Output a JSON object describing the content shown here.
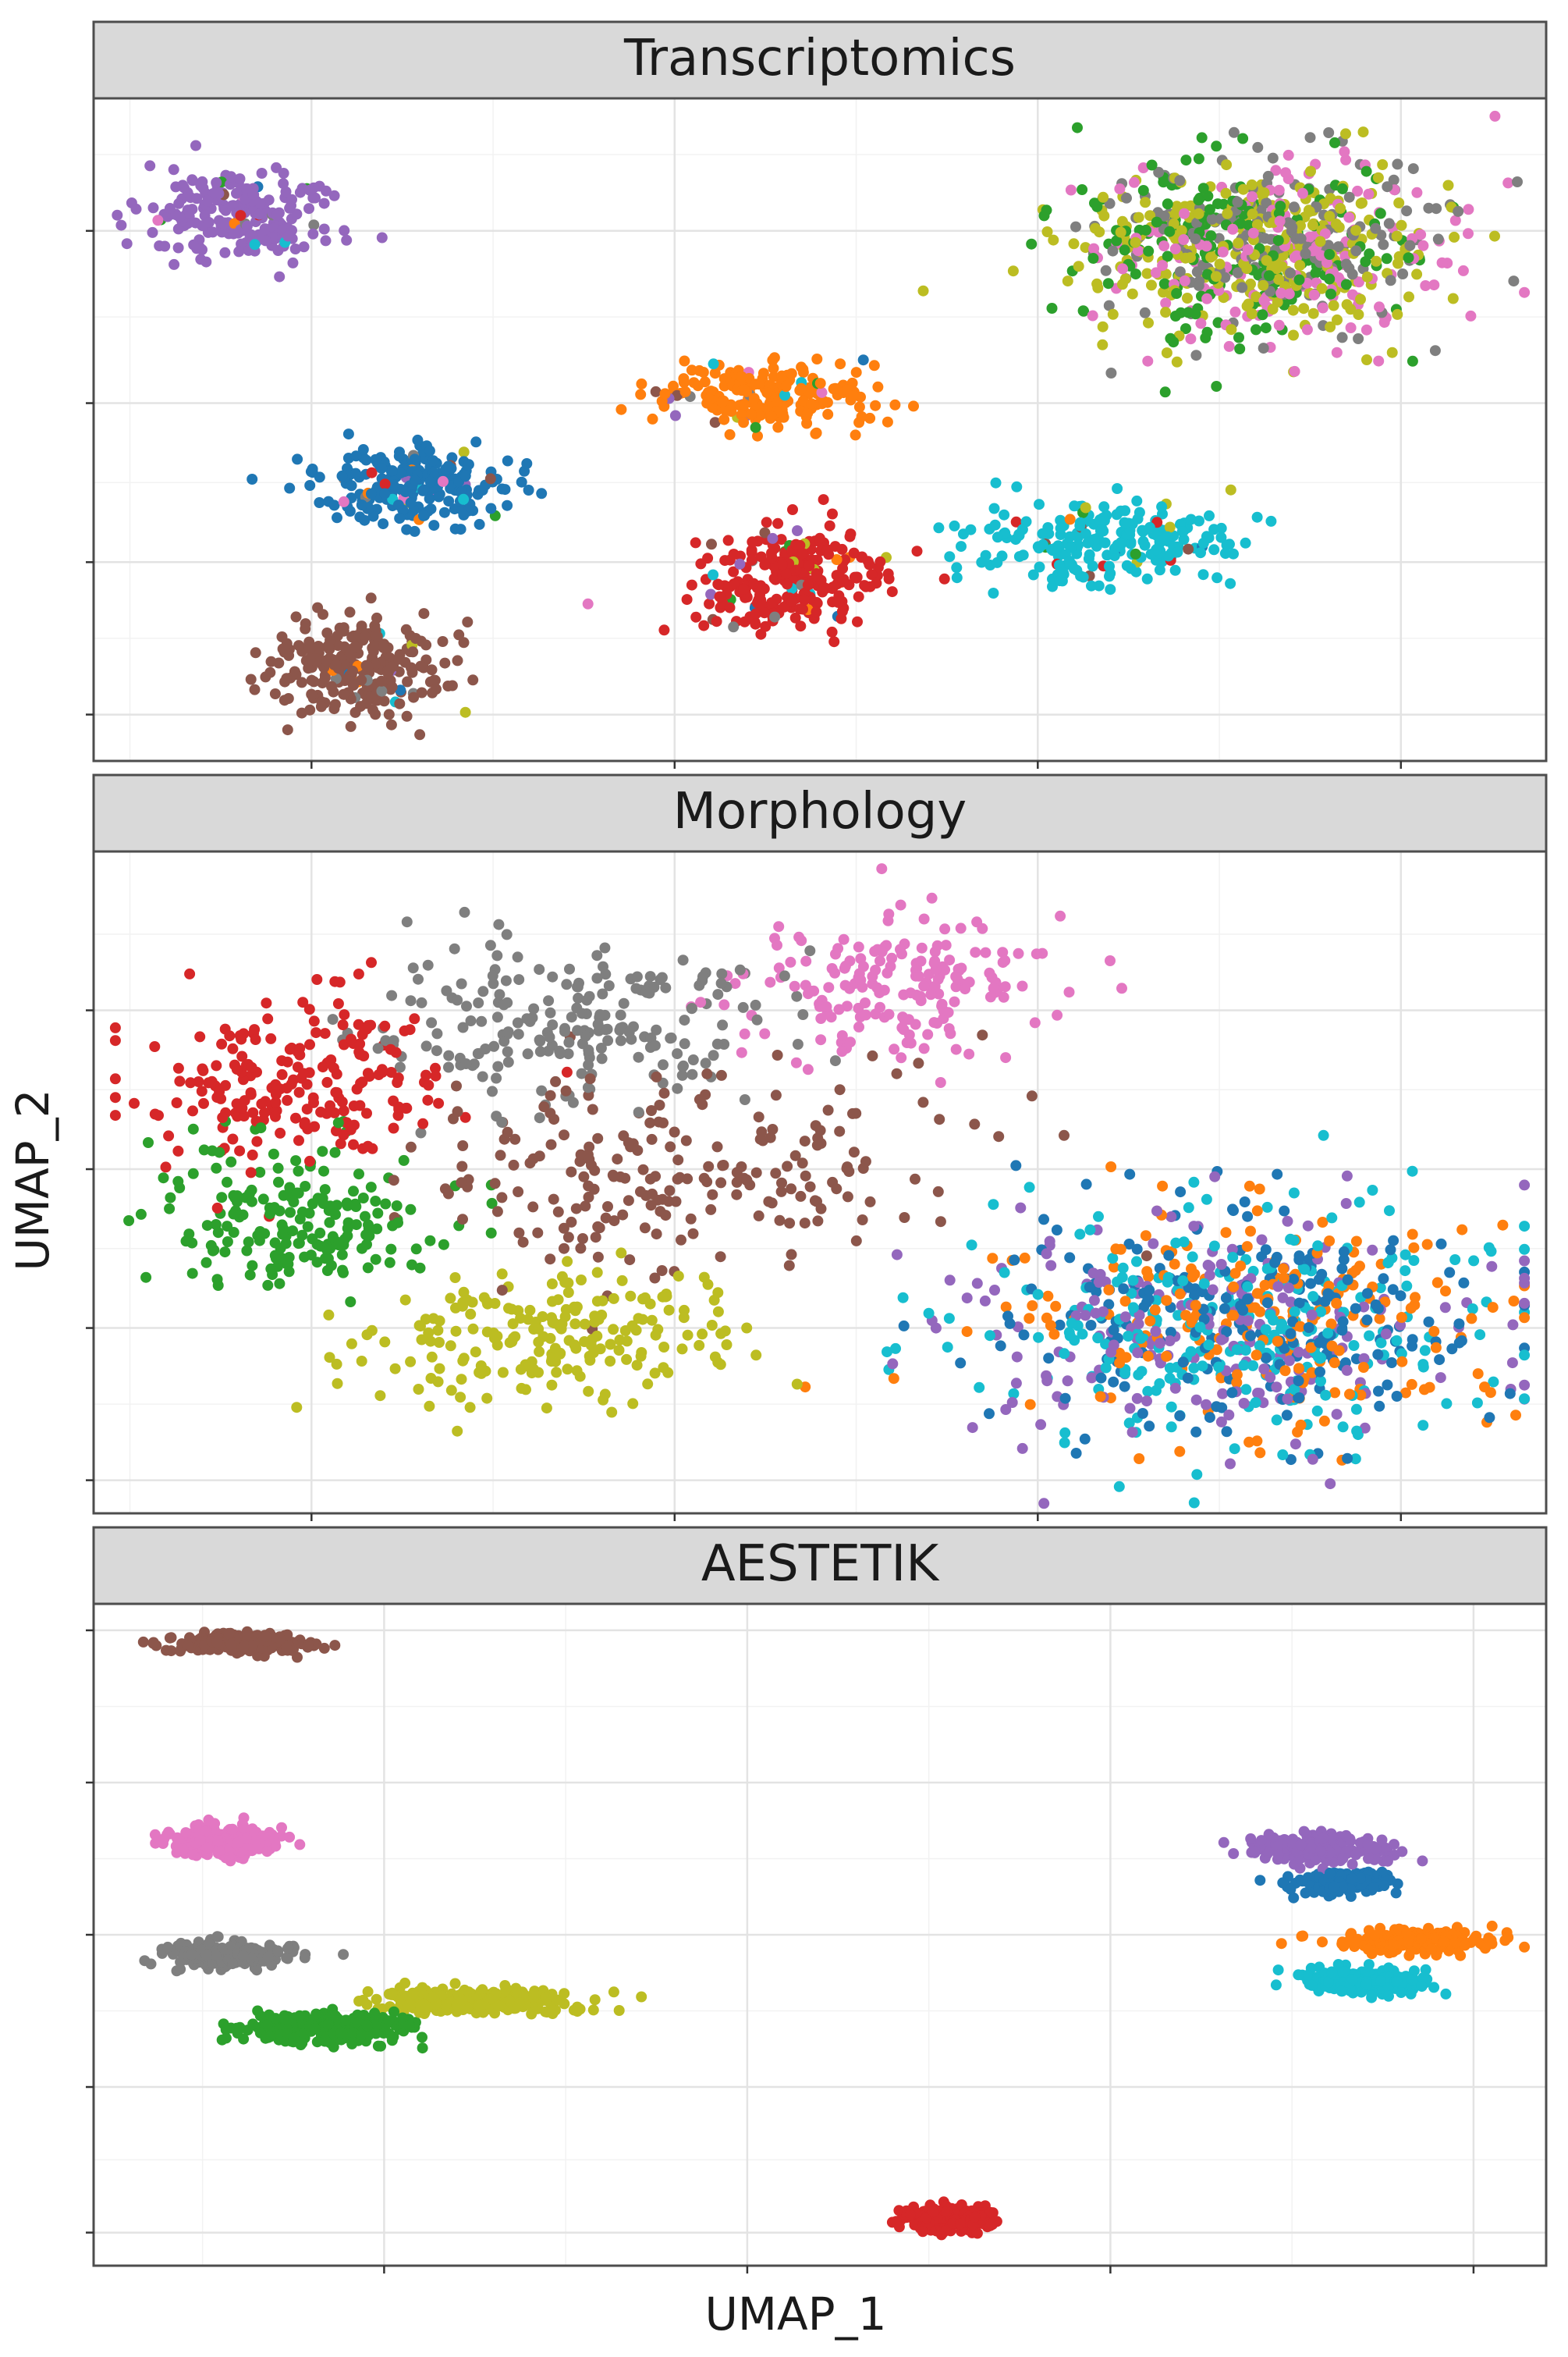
{
  "figure": {
    "x_axis_title": "UMAP_1",
    "y_axis_title": "UMAP_2"
  },
  "palette": [
    "#1f77b4",
    "#ff7f0e",
    "#2ca02c",
    "#d62728",
    "#9467bd",
    "#8c564b",
    "#e377c2",
    "#7f7f7f",
    "#bcbd22",
    "#17becf"
  ],
  "chart_data": [
    {
      "type": "scatter",
      "title": "Transcriptomics",
      "xlabel": "UMAP_1",
      "ylabel": "UMAP_2",
      "tick_labels_shown": false,
      "grid": true,
      "legend": "none",
      "xlim": [
        0,
        1
      ],
      "ylim": [
        0,
        1
      ],
      "clusters": [
        {
          "color_index": 4,
          "center": [
            0.1,
            0.82
          ],
          "spread": [
            0.045,
            0.045
          ],
          "n": 230,
          "contamination": 0.08
        },
        {
          "color_index": 0,
          "center": [
            0.22,
            0.42
          ],
          "spread": [
            0.045,
            0.04
          ],
          "n": 240,
          "contamination": 0.1
        },
        {
          "color_index": 5,
          "center": [
            0.18,
            0.14
          ],
          "spread": [
            0.04,
            0.05
          ],
          "n": 260,
          "contamination": 0.08
        },
        {
          "color_index": 1,
          "center": [
            0.46,
            0.55
          ],
          "spread": [
            0.05,
            0.035
          ],
          "n": 210,
          "contamination": 0.1
        },
        {
          "color_index": 3,
          "center": [
            0.48,
            0.27
          ],
          "spread": [
            0.045,
            0.05
          ],
          "n": 270,
          "contamination": 0.12
        },
        {
          "color_index": 9,
          "center": [
            0.7,
            0.33
          ],
          "spread": [
            0.06,
            0.045
          ],
          "n": 230,
          "contamination": 0.12
        },
        {
          "color_index": 8,
          "center": [
            0.79,
            0.77
          ],
          "spread": [
            0.09,
            0.09
          ],
          "n": 260,
          "contamination": 0.0
        },
        {
          "color_index": 7,
          "center": [
            0.81,
            0.79
          ],
          "spread": [
            0.08,
            0.09
          ],
          "n": 180,
          "contamination": 0.0
        },
        {
          "color_index": 6,
          "center": [
            0.82,
            0.76
          ],
          "spread": [
            0.08,
            0.09
          ],
          "n": 170,
          "contamination": 0.0
        },
        {
          "color_index": 2,
          "center": [
            0.79,
            0.78
          ],
          "spread": [
            0.08,
            0.09
          ],
          "n": 190,
          "contamination": 0.0
        }
      ]
    },
    {
      "type": "scatter",
      "title": "Morphology",
      "xlabel": "UMAP_1",
      "ylabel": "UMAP_2",
      "tick_labels_shown": false,
      "grid": true,
      "legend": "none",
      "xlim": [
        0,
        1
      ],
      "ylim": [
        0,
        1
      ],
      "clusters": [
        {
          "color_index": 3,
          "center": [
            0.14,
            0.65
          ],
          "spread": [
            0.07,
            0.09
          ],
          "n": 210,
          "contamination": 0.0
        },
        {
          "color_index": 2,
          "center": [
            0.14,
            0.44
          ],
          "spread": [
            0.07,
            0.08
          ],
          "n": 190,
          "contamination": 0.0
        },
        {
          "color_index": 7,
          "center": [
            0.33,
            0.74
          ],
          "spread": [
            0.09,
            0.08
          ],
          "n": 220,
          "contamination": 0.0
        },
        {
          "color_index": 8,
          "center": [
            0.31,
            0.27
          ],
          "spread": [
            0.09,
            0.07
          ],
          "n": 210,
          "contamination": 0.0
        },
        {
          "color_index": 5,
          "center": [
            0.4,
            0.52
          ],
          "spread": [
            0.12,
            0.1
          ],
          "n": 220,
          "contamination": 0.0
        },
        {
          "color_index": 6,
          "center": [
            0.55,
            0.8
          ],
          "spread": [
            0.07,
            0.07
          ],
          "n": 190,
          "contamination": 0.0
        },
        {
          "color_index": 9,
          "center": [
            0.79,
            0.28
          ],
          "spread": [
            0.12,
            0.12
          ],
          "n": 260,
          "contamination": 0.0
        },
        {
          "color_index": 0,
          "center": [
            0.79,
            0.3
          ],
          "spread": [
            0.12,
            0.12
          ],
          "n": 220,
          "contamination": 0.0
        },
        {
          "color_index": 1,
          "center": [
            0.8,
            0.3
          ],
          "spread": [
            0.12,
            0.12
          ],
          "n": 200,
          "contamination": 0.0
        },
        {
          "color_index": 4,
          "center": [
            0.78,
            0.28
          ],
          "spread": [
            0.12,
            0.12
          ],
          "n": 200,
          "contamination": 0.0
        }
      ]
    },
    {
      "type": "scatter",
      "title": "AESTETIK",
      "xlabel": "UMAP_1",
      "ylabel": "UMAP_2",
      "tick_labels_shown": false,
      "grid": true,
      "legend": "none",
      "xlim": [
        0,
        1
      ],
      "ylim": [
        0,
        1
      ],
      "clusters": [
        {
          "color_index": 5,
          "center": [
            0.1,
            0.94
          ],
          "spread": [
            0.03,
            0.01
          ],
          "n": 240,
          "contamination": 0.0
        },
        {
          "color_index": 6,
          "center": [
            0.09,
            0.64
          ],
          "spread": [
            0.025,
            0.015
          ],
          "n": 220,
          "contamination": 0.0
        },
        {
          "color_index": 7,
          "center": [
            0.09,
            0.47
          ],
          "spread": [
            0.03,
            0.012
          ],
          "n": 220,
          "contamination": 0.0
        },
        {
          "color_index": 2,
          "center": [
            0.16,
            0.36
          ],
          "spread": [
            0.04,
            0.015
          ],
          "n": 260,
          "contamination": 0.0
        },
        {
          "color_index": 8,
          "center": [
            0.26,
            0.4
          ],
          "spread": [
            0.05,
            0.012
          ],
          "n": 260,
          "contamination": 0.0
        },
        {
          "color_index": 3,
          "center": [
            0.59,
            0.07
          ],
          "spread": [
            0.02,
            0.012
          ],
          "n": 220,
          "contamination": 0.0
        },
        {
          "color_index": 4,
          "center": [
            0.84,
            0.63
          ],
          "spread": [
            0.03,
            0.014
          ],
          "n": 220,
          "contamination": 0.0
        },
        {
          "color_index": 0,
          "center": [
            0.86,
            0.58
          ],
          "spread": [
            0.025,
            0.01
          ],
          "n": 210,
          "contamination": 0.0
        },
        {
          "color_index": 1,
          "center": [
            0.91,
            0.49
          ],
          "spread": [
            0.035,
            0.012
          ],
          "n": 230,
          "contamination": 0.0
        },
        {
          "color_index": 9,
          "center": [
            0.87,
            0.43
          ],
          "spread": [
            0.028,
            0.012
          ],
          "n": 220,
          "contamination": 0.0
        }
      ]
    }
  ]
}
